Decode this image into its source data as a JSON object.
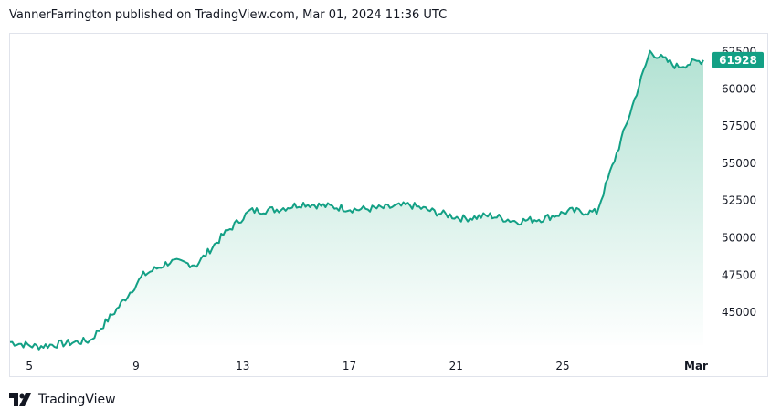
{
  "header": {
    "attribution": "VannerFarrington published on TradingView.com, Mar 01, 2024 11:36 UTC"
  },
  "footer": {
    "brand": "TradingView",
    "logo_icon": "tradingview-logo-icon"
  },
  "colors": {
    "line": "#13a085",
    "fill_top": "#b2e2d3",
    "fill_bottom": "#ffffff",
    "badge_bg": "#13a085",
    "badge_text": "#ffffff",
    "axis_border": "#e0e3eb"
  },
  "chart_data": {
    "type": "area",
    "grid": false,
    "x_tick_labels": [
      "5",
      "9",
      "13",
      "17",
      "21",
      "25",
      "Mar"
    ],
    "y_tick_labels": [
      "45000",
      "47500",
      "50000",
      "52500",
      "55000",
      "57500",
      "60000",
      "62500"
    ],
    "ylim": [
      42800,
      63700
    ],
    "last_price_label": "61928",
    "x": [
      "Feb 4",
      "Feb 5",
      "Feb 6",
      "Feb 7",
      "Feb 8",
      "Feb 9",
      "Feb 10",
      "Feb 11",
      "Feb 12",
      "Feb 13",
      "Feb 14",
      "Feb 15",
      "Feb 16",
      "Feb 17",
      "Feb 18",
      "Feb 19",
      "Feb 20",
      "Feb 21",
      "Feb 22",
      "Feb 23",
      "Feb 24",
      "Feb 25",
      "Feb 26",
      "Feb 27",
      "Feb 28",
      "Feb 29",
      "Mar 1"
    ],
    "series": [
      {
        "values": [
          43000,
          42700,
          42900,
          43100,
          45200,
          47500,
          48400,
          48200,
          50200,
          51800,
          51900,
          52300,
          52100,
          51900,
          52000,
          52200,
          51700,
          51300,
          51500,
          51100,
          51300,
          51800,
          51700,
          57000,
          62500,
          61500,
          61928
        ]
      }
    ]
  }
}
